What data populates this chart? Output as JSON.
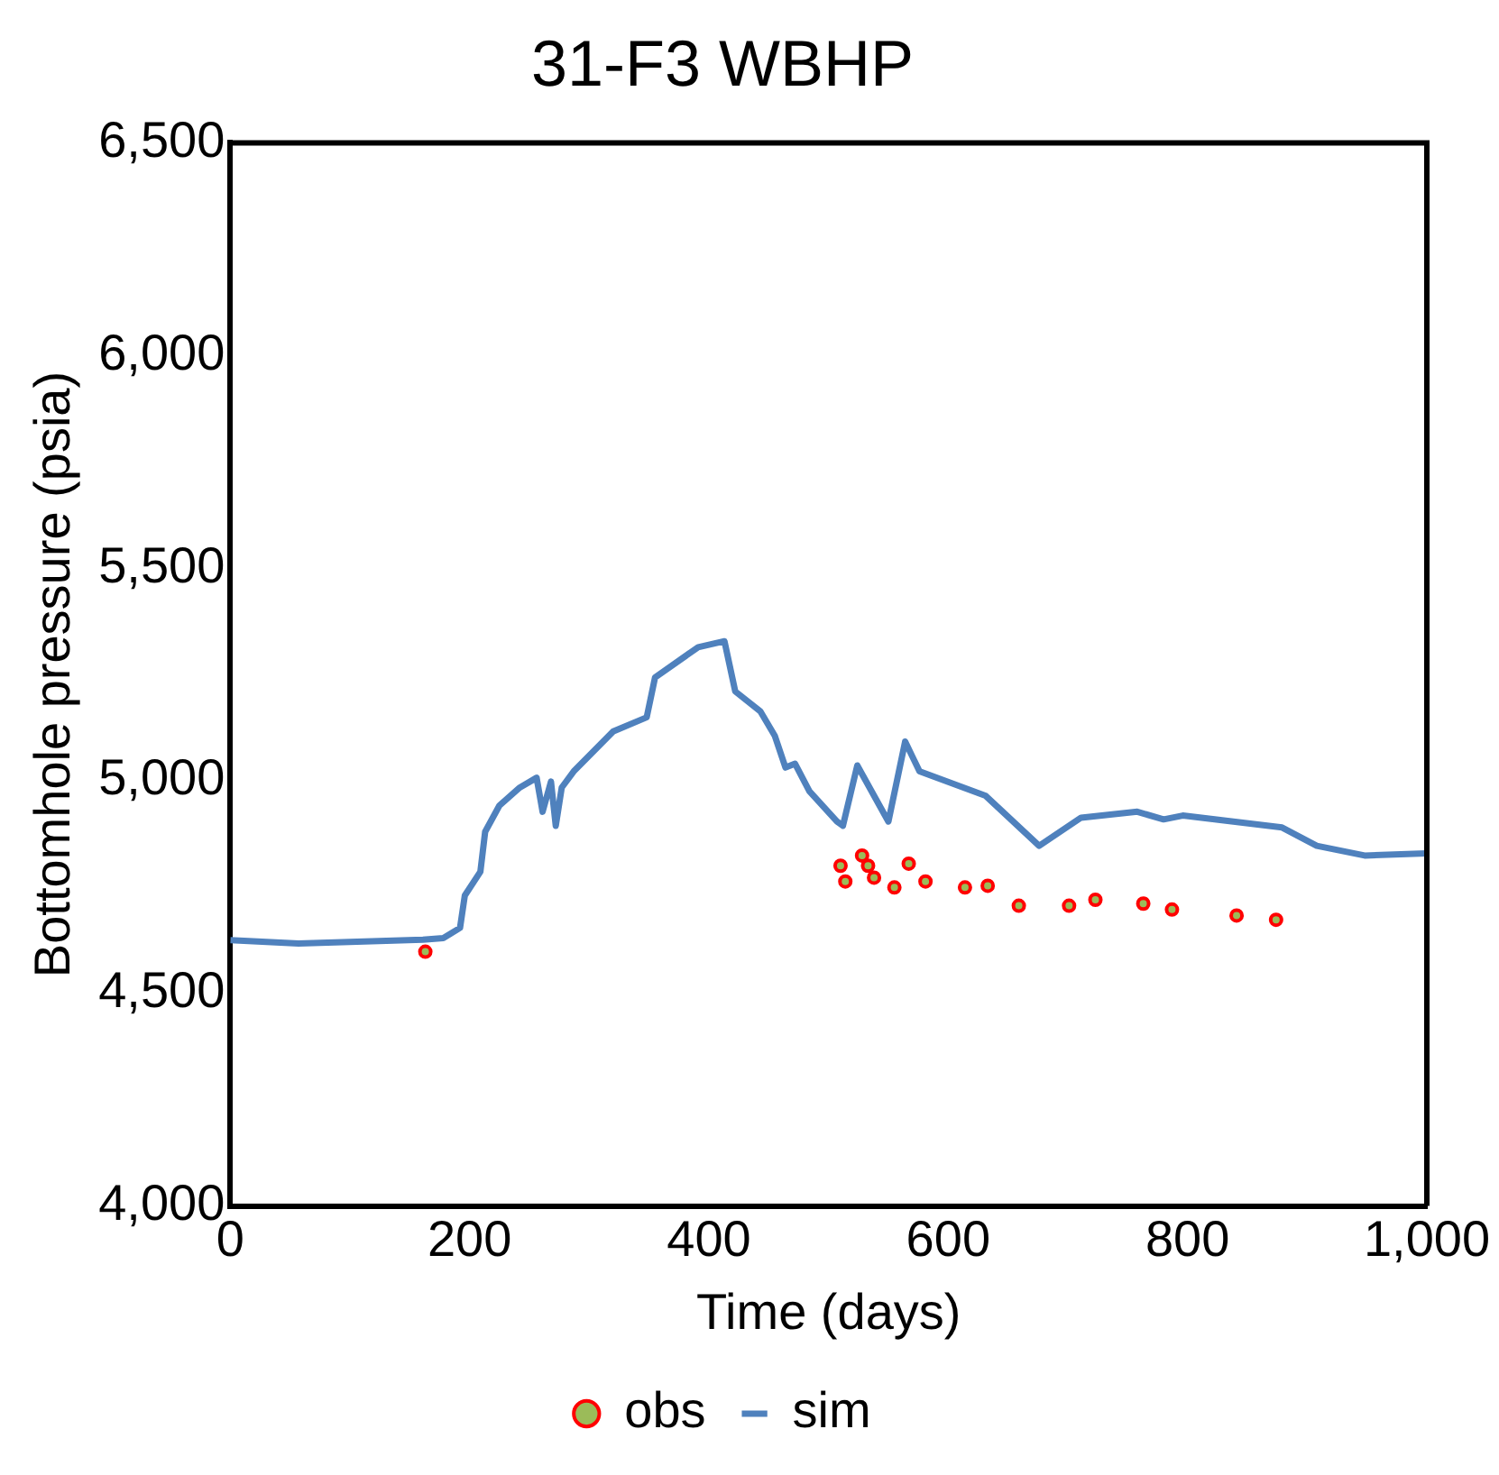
{
  "chart_data": {
    "type": "line",
    "title": "31-F3 WBHP",
    "xlabel": "Time (days)",
    "ylabel": "Bottomhole pressure (psia)",
    "xlim": [
      0,
      1000
    ],
    "xticks": [
      {
        "value": 0,
        "label": "0"
      },
      {
        "value": 200,
        "label": "200"
      },
      {
        "value": 400,
        "label": "400"
      },
      {
        "value": 600,
        "label": "600"
      },
      {
        "value": 800,
        "label": "800"
      },
      {
        "value": 1000,
        "label": "1,000"
      }
    ],
    "ylim": [
      4000,
      6500
    ],
    "yticks": [
      {
        "value": 4000,
        "label": "4,000"
      },
      {
        "value": 4500,
        "label": "4,500"
      },
      {
        "value": 5000,
        "label": "5,000"
      },
      {
        "value": 5500,
        "label": "5,500"
      },
      {
        "value": 6000,
        "label": "6,000"
      },
      {
        "value": 6500,
        "label": "6,500"
      }
    ],
    "grid": false,
    "legend": "bottom",
    "series": [
      {
        "name": "obs",
        "type": "scatter",
        "marker": "circle",
        "color": "#ff0000",
        "x": [
          163,
          510,
          514,
          528,
          533,
          538,
          555,
          567,
          581,
          614,
          633,
          659,
          701,
          723,
          763,
          787,
          841,
          874
        ],
        "values": [
          4598,
          4800,
          4763,
          4824,
          4800,
          4772,
          4749,
          4805,
          4763,
          4749,
          4753,
          4706,
          4706,
          4720,
          4711,
          4697,
          4683,
          4673
        ]
      },
      {
        "name": "sim",
        "type": "line",
        "marker": "none",
        "line_style": "solid",
        "color": "#4f81bd",
        "x": [
          0,
          57,
          161,
          178,
          192,
          196,
          209,
          213,
          225,
          242,
          256,
          261,
          268,
          272,
          277,
          287,
          320,
          348,
          355,
          391,
          413,
          422,
          443,
          455,
          464,
          472,
          484,
          507,
          512,
          524,
          550,
          564,
          576,
          631,
          676,
          711,
          758,
          780,
          796,
          879,
          908,
          948,
          1000
        ],
        "values": [
          4625,
          4617,
          4626,
          4630,
          4654,
          4730,
          4786,
          4880,
          4942,
          4984,
          5007,
          4927,
          4998,
          4894,
          4984,
          5022,
          5116,
          5149,
          5243,
          5314,
          5328,
          5210,
          5163,
          5106,
          5031,
          5040,
          4975,
          4904,
          4894,
          5036,
          4904,
          5092,
          5022,
          4965,
          4847,
          4913,
          4927,
          4909,
          4918,
          4890,
          4847,
          4824,
          4829
        ]
      }
    ]
  }
}
